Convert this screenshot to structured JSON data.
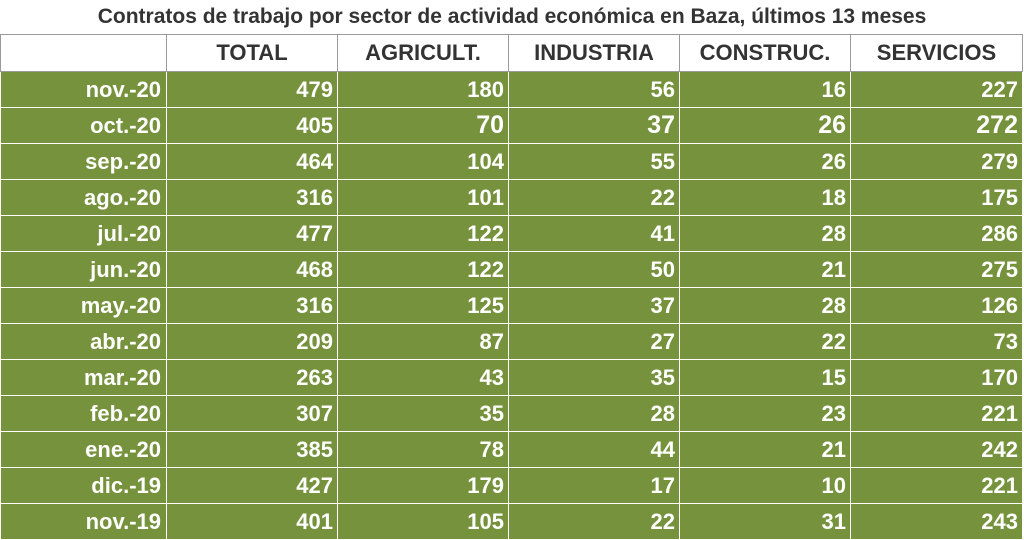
{
  "chart_data": {
    "type": "table",
    "title": "Contratos de trabajo por sector de actividad económica en Baza, últimos 13 meses",
    "columns": [
      "",
      "TOTAL",
      "AGRICULT.",
      "INDUSTRIA",
      "CONSTRUC.",
      "SERVICIOS"
    ],
    "rows": [
      {
        "month": "nov.-20",
        "values": [
          "479",
          "180",
          "56",
          "16",
          "227"
        ]
      },
      {
        "month": "oct.-20",
        "values": [
          "405",
          "70",
          "37",
          "26",
          "272"
        ]
      },
      {
        "month": "sep.-20",
        "values": [
          "464",
          "104",
          "55",
          "26",
          "279"
        ]
      },
      {
        "month": "ago.-20",
        "values": [
          "316",
          "101",
          "22",
          "18",
          "175"
        ]
      },
      {
        "month": "jul.-20",
        "values": [
          "477",
          "122",
          "41",
          "28",
          "286"
        ]
      },
      {
        "month": "jun.-20",
        "values": [
          "468",
          "122",
          "50",
          "21",
          "275"
        ]
      },
      {
        "month": "may.-20",
        "values": [
          "316",
          "125",
          "37",
          "28",
          "126"
        ]
      },
      {
        "month": "abr.-20",
        "values": [
          "209",
          "87",
          "27",
          "22",
          "73"
        ]
      },
      {
        "month": "mar.-20",
        "values": [
          "263",
          "43",
          "35",
          "15",
          "170"
        ]
      },
      {
        "month": "feb.-20",
        "values": [
          "307",
          "35",
          "28",
          "23",
          "221"
        ]
      },
      {
        "month": "ene.-20",
        "values": [
          "385",
          "78",
          "44",
          "21",
          "242"
        ]
      },
      {
        "month": "dic.-19",
        "values": [
          "427",
          "179",
          "17",
          "10",
          "221"
        ]
      },
      {
        "month": "nov.-19",
        "values": [
          "401",
          "105",
          "22",
          "31",
          "243"
        ]
      }
    ]
  },
  "colors": {
    "cell_background": "#76923c",
    "cell_text": "#ffffff",
    "header_text": "#333333",
    "grid_line": "#9a9a9a"
  }
}
